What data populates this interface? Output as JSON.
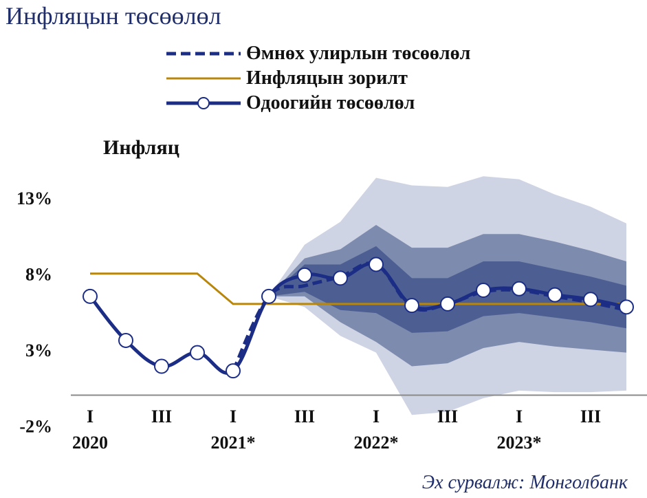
{
  "title": "Инфляцын төсөөлөл",
  "source": "Эх сурвалж: Монголбанк",
  "colors": {
    "previous": "#1c2d86",
    "target": "#b8860b",
    "current": "#1c2d86",
    "band_outer": "#cfd4e4",
    "band_mid": "#7d8bae",
    "band_inner": "#4d5f92",
    "zero_line": "#8a8a8a"
  },
  "legend": [
    {
      "key": "previous",
      "label": "Өмнөх улирлын төсөөлөл",
      "style": "dashed"
    },
    {
      "key": "target",
      "label": "Инфляцын зорилт",
      "style": "solid"
    },
    {
      "key": "current",
      "label": "Одоогийн төсөөлөл",
      "style": "solid-markers"
    }
  ],
  "chart_data": {
    "type": "line",
    "title": "Инфляц",
    "ylim": [
      -2,
      15
    ],
    "yticks": [
      -2,
      3,
      8,
      13
    ],
    "ytick_labels": [
      "-2%",
      "3%",
      "8%",
      "13%"
    ],
    "x_quarter_labels": [
      "I",
      "III",
      "I",
      "III",
      "I",
      "III",
      "I",
      "III"
    ],
    "x_quarter_label_at": [
      0,
      2,
      4,
      6,
      8,
      10,
      12,
      14
    ],
    "x_year_labels": [
      "2020",
      "2021*",
      "2022*",
      "2023*"
    ],
    "x_year_label_at": [
      0,
      4,
      8,
      12
    ],
    "series": [
      {
        "key": "current",
        "name": "Одоогийн төсөөлөл",
        "x": [
          0,
          1,
          2,
          3,
          4,
          5,
          6,
          7,
          8,
          9,
          10,
          11,
          12,
          13,
          14,
          15
        ],
        "values": [
          6.5,
          3.6,
          1.9,
          2.8,
          1.6,
          6.5,
          7.9,
          7.7,
          8.6,
          5.9,
          6.0,
          6.9,
          7.0,
          6.6,
          6.3,
          5.8
        ]
      },
      {
        "key": "previous",
        "name": "Өмнөх улирлын төсөөлөл",
        "x": [
          4,
          5,
          6,
          7,
          8,
          9,
          10,
          11,
          12,
          13,
          14,
          15
        ],
        "values": [
          1.6,
          6.5,
          7.2,
          7.8,
          8.6,
          5.8,
          6.0,
          6.8,
          6.9,
          6.5,
          6.1,
          5.6
        ]
      },
      {
        "key": "target",
        "name": "Инфляцын зорилт",
        "x": [
          0,
          3,
          4,
          15
        ],
        "values": [
          8.0,
          8.0,
          6.0,
          6.0
        ]
      }
    ],
    "fan_bands": {
      "x": [
        5,
        6,
        7,
        8,
        9,
        10,
        11,
        12,
        13,
        14,
        15
      ],
      "outer_upper": [
        6.5,
        9.9,
        11.4,
        14.3,
        13.8,
        13.7,
        14.4,
        14.2,
        13.2,
        12.4,
        11.3
      ],
      "outer_lower": [
        6.5,
        5.8,
        3.9,
        2.8,
        -1.3,
        -1.1,
        -0.2,
        0.3,
        0.2,
        0.2,
        0.3
      ],
      "mid_upper": [
        6.5,
        9.0,
        9.6,
        11.2,
        9.7,
        9.7,
        10.6,
        10.6,
        10.1,
        9.5,
        8.8
      ],
      "mid_lower": [
        6.5,
        6.5,
        4.8,
        3.5,
        1.9,
        2.1,
        3.1,
        3.5,
        3.2,
        3.0,
        2.8
      ],
      "inner_upper": [
        6.5,
        8.6,
        8.6,
        9.8,
        7.7,
        7.7,
        8.8,
        8.8,
        8.3,
        7.8,
        7.2
      ],
      "inner_lower": [
        6.5,
        6.8,
        5.6,
        5.4,
        4.1,
        4.2,
        5.2,
        5.4,
        5.1,
        4.8,
        4.4
      ]
    },
    "zero_line": 0,
    "grid": false
  }
}
